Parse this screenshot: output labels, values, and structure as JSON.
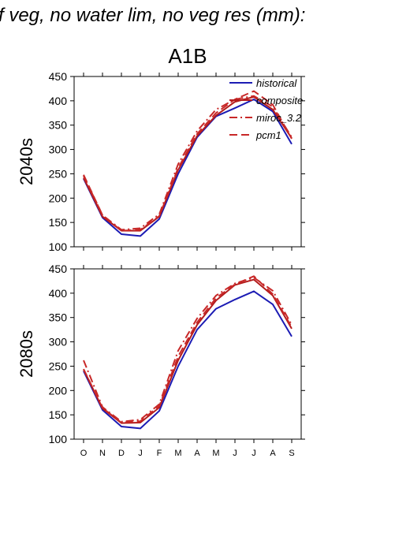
{
  "figure": {
    "title": "f veg, no water lim, no veg res (mm):",
    "scenario": "A1B"
  },
  "legend": {
    "placement": "top-right",
    "entries": [
      {
        "label": "historical",
        "color": "#1c1cb4",
        "dash": "solid"
      },
      {
        "label": "composite",
        "color": "#b41c1c",
        "dash": "solid"
      },
      {
        "label": "miroc_3.2",
        "color": "#c82828",
        "dash": "dashdot"
      },
      {
        "label": "pcm1",
        "color": "#c82828",
        "dash": "dashed"
      }
    ]
  },
  "chart_data": [
    {
      "type": "line",
      "panel": "2040s",
      "ylabel": "2040s",
      "categories": [
        "O",
        "N",
        "D",
        "J",
        "F",
        "M",
        "A",
        "M",
        "J",
        "J",
        "A",
        "S"
      ],
      "ylim": [
        100,
        450
      ],
      "yticks": [
        "100",
        "150",
        "200",
        "250",
        "300",
        "350",
        "400",
        "450"
      ],
      "series": [
        {
          "name": "historical",
          "values": [
            240,
            160,
            126,
            122,
            157,
            250,
            325,
            368,
            385,
            403,
            378,
            311
          ]
        },
        {
          "name": "composite",
          "values": [
            242,
            162,
            133,
            133,
            162,
            258,
            328,
            370,
            398,
            408,
            382,
            323
          ]
        },
        {
          "name": "miroc_3.2",
          "values": [
            246,
            165,
            135,
            138,
            167,
            270,
            338,
            382,
            403,
            410,
            388,
            325
          ]
        },
        {
          "name": "pcm1",
          "values": [
            248,
            165,
            133,
            135,
            163,
            262,
            332,
            375,
            403,
            420,
            392,
            322
          ]
        }
      ]
    },
    {
      "type": "line",
      "panel": "2080s",
      "ylabel": "2080s",
      "categories": [
        "O",
        "N",
        "D",
        "J",
        "F",
        "M",
        "A",
        "M",
        "J",
        "J",
        "A",
        "S"
      ],
      "ylim": [
        100,
        450
      ],
      "yticks": [
        "100",
        "150",
        "200",
        "250",
        "300",
        "350",
        "400",
        "450"
      ],
      "series": [
        {
          "name": "historical",
          "values": [
            240,
            160,
            126,
            122,
            158,
            250,
            325,
            368,
            387,
            404,
            377,
            311
          ]
        },
        {
          "name": "composite",
          "values": [
            243,
            163,
            133,
            134,
            165,
            262,
            335,
            385,
            417,
            428,
            395,
            327
          ]
        },
        {
          "name": "miroc_3.2",
          "values": [
            262,
            166,
            136,
            140,
            172,
            282,
            348,
            395,
            420,
            432,
            405,
            335
          ]
        },
        {
          "name": "pcm1",
          "values": [
            244,
            164,
            134,
            137,
            168,
            270,
            340,
            390,
            418,
            435,
            398,
            330
          ]
        }
      ]
    }
  ]
}
